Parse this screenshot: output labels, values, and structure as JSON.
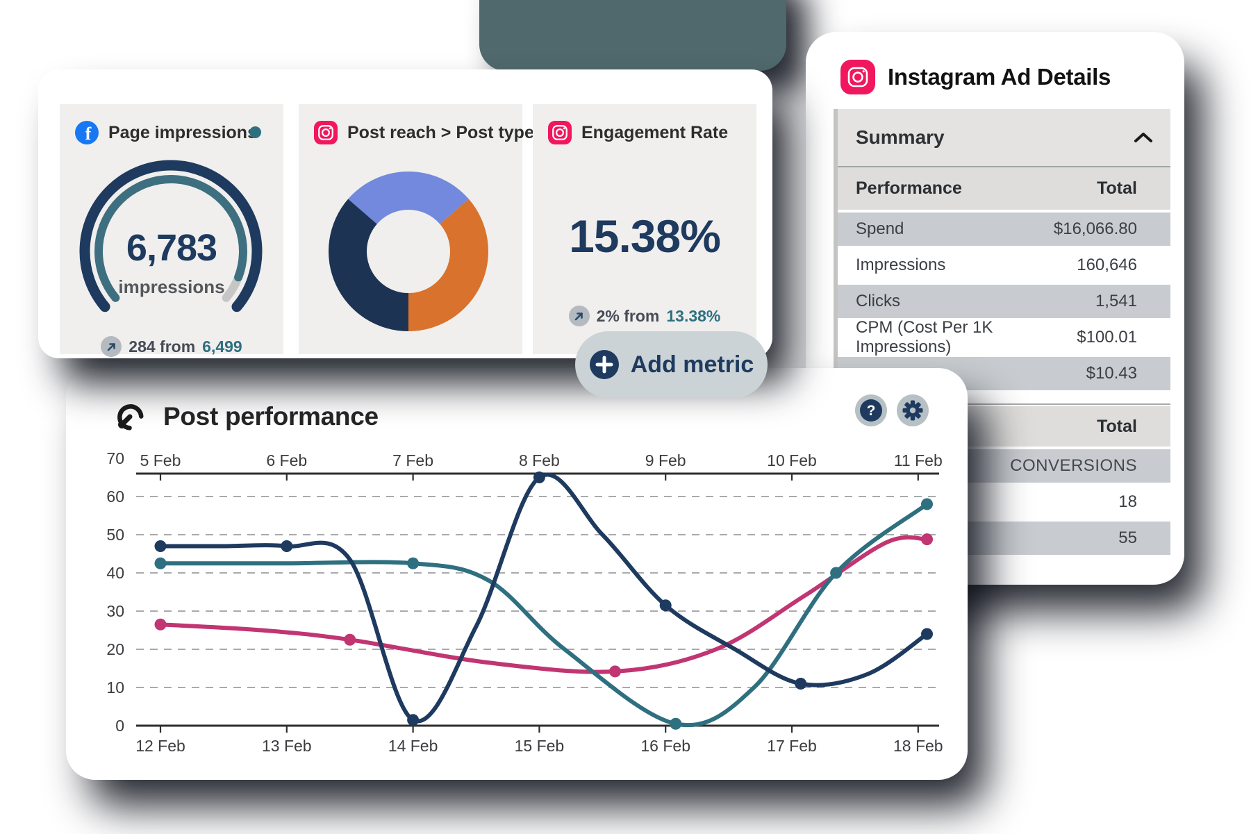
{
  "colors": {
    "navy": "#1e3a5f",
    "teal": "#2e6f80",
    "pink": "#c13572",
    "gauge_remainder_gray": "#c6c6c6",
    "donut_blue": "#7289dd",
    "donut_orange": "#d8722c",
    "donut_navy": "#1d3354",
    "facebook_blue": "#1877f2",
    "instagram_pink": "#f0175e",
    "accent_shape": "#4f696c"
  },
  "metrics_card": {
    "impressions_tile": {
      "title": "Page impressions",
      "value": "6,783",
      "unit": "impressions",
      "delta_label": "284 from",
      "previous": "6,499"
    },
    "reach_tile": {
      "title": "Post reach > Post type"
    },
    "engagement_tile": {
      "title": "Engagement Rate",
      "value": "15.38%",
      "delta_label": "2% from",
      "previous": "13.38%"
    },
    "add_metric_label": "Add metric"
  },
  "post_performance": {
    "title": "Post performance"
  },
  "ad_details": {
    "title": "Instagram Ad Details",
    "summary_label": "Summary",
    "rows": [
      {
        "label": "Performance",
        "value": "Total"
      },
      {
        "label": "Spend",
        "value": "$16,066.80"
      },
      {
        "label": "Impressions",
        "value": "160,646"
      },
      {
        "label": "Clicks",
        "value": "1,541"
      },
      {
        "label": "CPM (Cost Per 1K Impressions)",
        "value": "$100.01"
      },
      {
        "value": "$10.43"
      },
      {
        "value": "Total"
      },
      {
        "value": "CONVERSIONS"
      },
      {
        "value": "18"
      },
      {
        "value": "55"
      }
    ]
  },
  "chart_data": [
    {
      "type": "gauge",
      "title": "Page impressions",
      "value": 6783,
      "unit": "impressions",
      "previous": 6499,
      "delta": 284,
      "start_deg": -130,
      "end_deg": 130,
      "inner_fill_end_deg": 111,
      "outer_color": "#1e3a5f",
      "inner_color": "#3d6f80",
      "remainder_color": "#c6c6c6"
    },
    {
      "type": "pie",
      "title": "Post reach > Post type",
      "slices": [
        {
          "label": "slice-blue",
          "color": "#7289dd",
          "start_deg": -49,
          "end_deg": 49
        },
        {
          "label": "slice-orange",
          "color": "#d8722c",
          "start_deg": 49,
          "end_deg": 180
        },
        {
          "label": "slice-navy",
          "color": "#1d3354",
          "start_deg": 180,
          "end_deg": 311
        }
      ]
    },
    {
      "type": "line",
      "title": "Post performance",
      "x_axis_top_labels": [
        "5 Feb",
        "6 Feb",
        "7 Feb",
        "8 Feb",
        "9 Feb",
        "10 Feb",
        "11 Feb"
      ],
      "x_axis_bottom_labels": [
        "12 Feb",
        "13 Feb",
        "14 Feb",
        "15 Feb",
        "16 Feb",
        "17 Feb",
        "18 Feb"
      ],
      "ylim": [
        0,
        70
      ],
      "yticks": [
        0,
        10,
        20,
        30,
        40,
        50,
        60,
        70
      ],
      "grid": "dashed-horizontal",
      "series": [
        {
          "name": "pink-series",
          "color": "#c13572",
          "points": [
            [
              0,
              26.5
            ],
            [
              0.8,
              25
            ],
            [
              1.5,
              22.5
            ],
            [
              2.6,
              16.5
            ],
            [
              3.6,
              14.2
            ],
            [
              4.4,
              20
            ],
            [
              5.1,
              34
            ],
            [
              5.75,
              48
            ],
            [
              6.07,
              48.8
            ]
          ],
          "markers": [
            [
              0,
              26.5
            ],
            [
              1.5,
              22.5
            ],
            [
              3.6,
              14.2
            ],
            [
              6.07,
              48.8
            ]
          ]
        },
        {
          "name": "teal-series",
          "color": "#2e6f80",
          "points": [
            [
              0,
              42.5
            ],
            [
              0.5,
              42.5
            ],
            [
              1,
              42.5
            ],
            [
              2,
              42.5
            ],
            [
              2.6,
              38
            ],
            [
              3.2,
              20
            ],
            [
              4.08,
              0.5
            ],
            [
              4.7,
              10
            ],
            [
              5.35,
              40
            ],
            [
              6.07,
              58
            ]
          ],
          "markers": [
            [
              0,
              42.5
            ],
            [
              2,
              42.5
            ],
            [
              4.08,
              0.5
            ],
            [
              5.35,
              40
            ],
            [
              6.07,
              58
            ]
          ]
        },
        {
          "name": "navy-series",
          "color": "#1e3a5f",
          "points": [
            [
              0,
              47
            ],
            [
              0.5,
              47
            ],
            [
              1,
              47
            ],
            [
              1.5,
              43.5
            ],
            [
              2,
              1.5
            ],
            [
              2.5,
              26
            ],
            [
              3,
              65
            ],
            [
              3.5,
              50
            ],
            [
              4,
              31.5
            ],
            [
              4.55,
              20
            ],
            [
              5.07,
              11
            ],
            [
              5.6,
              13.5
            ],
            [
              6.07,
              24
            ]
          ],
          "markers": [
            [
              0,
              47
            ],
            [
              1,
              47
            ],
            [
              2,
              1.5
            ],
            [
              3,
              65
            ],
            [
              4,
              31.5
            ],
            [
              5.07,
              11
            ],
            [
              6.07,
              24
            ]
          ]
        }
      ]
    }
  ]
}
